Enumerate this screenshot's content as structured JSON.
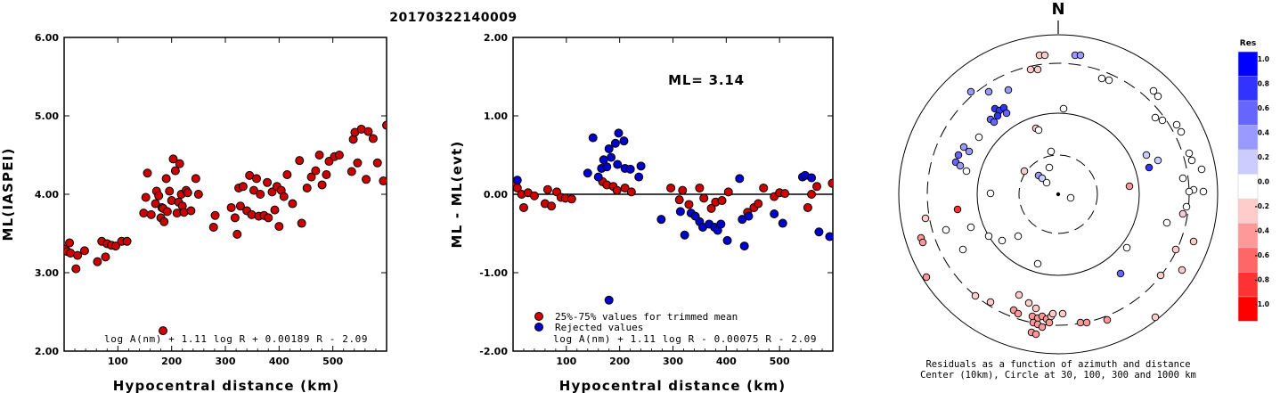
{
  "title": "20170322140009",
  "chart_data": [
    {
      "type": "scatter",
      "xlabel": "Hypocentral distance (km)",
      "ylabel": "ML(IASPEI)",
      "xlim": [
        0,
        600
      ],
      "ylim": [
        2.0,
        6.0
      ],
      "xticks": [
        "100",
        "200",
        "300",
        "400",
        "500"
      ],
      "yticks": [
        "2.00",
        "3.00",
        "4.00",
        "5.00",
        "6.00"
      ],
      "formula": "log A(nm) + 1.11 log R + 0.00189 R - 2.09",
      "points": [
        [
          2,
          3.3
        ],
        [
          6,
          3.27
        ],
        [
          10,
          3.38
        ],
        [
          12,
          3.25
        ],
        [
          22,
          3.05
        ],
        [
          25,
          3.22
        ],
        [
          38,
          3.28
        ],
        [
          62,
          3.14
        ],
        [
          70,
          3.4
        ],
        [
          77,
          3.2
        ],
        [
          80,
          3.37
        ],
        [
          88,
          3.35
        ],
        [
          96,
          3.34
        ],
        [
          107,
          3.4
        ],
        [
          117,
          3.4
        ],
        [
          148,
          3.76
        ],
        [
          152,
          3.96
        ],
        [
          155,
          4.27
        ],
        [
          162,
          3.74
        ],
        [
          170,
          3.88
        ],
        [
          172,
          4.04
        ],
        [
          176,
          3.98
        ],
        [
          180,
          3.7
        ],
        [
          182,
          3.83
        ],
        [
          184,
          3.82
        ],
        [
          186,
          3.65
        ],
        [
          190,
          4.2
        ],
        [
          192,
          3.78
        ],
        [
          196,
          4.04
        ],
        [
          200,
          3.92
        ],
        [
          203,
          4.45
        ],
        [
          207,
          4.3
        ],
        [
          210,
          3.76
        ],
        [
          213,
          3.9
        ],
        [
          215,
          4.39
        ],
        [
          218,
          4.0
        ],
        [
          220,
          3.85
        ],
        [
          223,
          3.77
        ],
        [
          227,
          4.05
        ],
        [
          230,
          4.02
        ],
        [
          236,
          3.79
        ],
        [
          245,
          4.2
        ],
        [
          250,
          4.0
        ],
        [
          278,
          3.58
        ],
        [
          281,
          3.73
        ],
        [
          311,
          3.83
        ],
        [
          318,
          3.7
        ],
        [
          322,
          3.49
        ],
        [
          325,
          4.08
        ],
        [
          328,
          3.85
        ],
        [
          333,
          4.1
        ],
        [
          340,
          3.79
        ],
        [
          345,
          4.24
        ],
        [
          349,
          3.74
        ],
        [
          353,
          4.05
        ],
        [
          358,
          4.2
        ],
        [
          362,
          3.72
        ],
        [
          365,
          4.0
        ],
        [
          372,
          3.73
        ],
        [
          378,
          4.15
        ],
        [
          380,
          3.7
        ],
        [
          387,
          4.03
        ],
        [
          392,
          3.8
        ],
        [
          396,
          4.1
        ],
        [
          400,
          3.59
        ],
        [
          404,
          4.05
        ],
        [
          409,
          3.97
        ],
        [
          415,
          4.25
        ],
        [
          425,
          3.88
        ],
        [
          438,
          4.43
        ],
        [
          442,
          3.63
        ],
        [
          452,
          4.08
        ],
        [
          460,
          4.22
        ],
        [
          468,
          4.3
        ],
        [
          475,
          4.5
        ],
        [
          480,
          4.12
        ],
        [
          488,
          4.25
        ],
        [
          493,
          4.42
        ],
        [
          503,
          4.48
        ],
        [
          512,
          4.5
        ],
        [
          535,
          4.29
        ],
        [
          538,
          4.7
        ],
        [
          541,
          4.79
        ],
        [
          546,
          4.4
        ],
        [
          553,
          4.83
        ],
        [
          562,
          4.19
        ],
        [
          566,
          4.8
        ],
        [
          575,
          4.71
        ],
        [
          583,
          4.4
        ],
        [
          594,
          4.17
        ],
        [
          600,
          4.88
        ],
        [
          184,
          2.26
        ]
      ]
    },
    {
      "type": "scatter",
      "xlabel": "Hypocentral distance (km)",
      "ylabel": "ML - ML(evt)",
      "xlim": [
        0,
        600
      ],
      "ylim": [
        -2.0,
        2.0
      ],
      "xticks": [
        "100",
        "200",
        "300",
        "400",
        "500"
      ],
      "yticks": [
        "-2.00",
        "-1.00",
        "0.00",
        "1.00",
        "2.00"
      ],
      "annotation": "ML= 3.14",
      "formula": "log A(nm) + 1.11 log R - 0.00075 R - 2.09",
      "series": [
        {
          "name": "25%-75% values for trimmed mean",
          "color": "#cc0000",
          "points": [
            [
              5,
              0.14
            ],
            [
              8,
              0.08
            ],
            [
              16,
              0.0
            ],
            [
              20,
              -0.17
            ],
            [
              28,
              0.02
            ],
            [
              40,
              -0.02
            ],
            [
              60,
              -0.12
            ],
            [
              65,
              0.06
            ],
            [
              72,
              -0.15
            ],
            [
              82,
              0.03
            ],
            [
              90,
              -0.04
            ],
            [
              98,
              -0.05
            ],
            [
              110,
              -0.06
            ],
            [
              168,
              0.16
            ],
            [
              176,
              0.12
            ],
            [
              188,
              0.1
            ],
            [
              195,
              0.05
            ],
            [
              210,
              0.08
            ],
            [
              222,
              0.03
            ],
            [
              296,
              0.08
            ],
            [
              312,
              -0.07
            ],
            [
              318,
              0.05
            ],
            [
              330,
              -0.13
            ],
            [
              350,
              0.08
            ],
            [
              358,
              -0.05
            ],
            [
              372,
              -0.18
            ],
            [
              380,
              -0.1
            ],
            [
              392,
              -0.08
            ],
            [
              404,
              0.03
            ],
            [
              440,
              -0.23
            ],
            [
              452,
              -0.17
            ],
            [
              460,
              -0.12
            ],
            [
              470,
              0.08
            ],
            [
              490,
              -0.03
            ],
            [
              500,
              0.02
            ],
            [
              510,
              0.01
            ],
            [
              553,
              -0.17
            ],
            [
              560,
              0.0
            ],
            [
              570,
              0.1
            ],
            [
              599,
              0.14
            ]
          ]
        },
        {
          "name": "Rejected values",
          "color": "#0000cc",
          "points": [
            [
              8,
              0.18
            ],
            [
              140,
              0.27
            ],
            [
              150,
              0.72
            ],
            [
              160,
              0.22
            ],
            [
              166,
              0.33
            ],
            [
              170,
              0.44
            ],
            [
              176,
              0.35
            ],
            [
              180,
              0.58
            ],
            [
              184,
              0.47
            ],
            [
              192,
              0.65
            ],
            [
              196,
              0.38
            ],
            [
              198,
              0.78
            ],
            [
              208,
              0.68
            ],
            [
              210,
              0.33
            ],
            [
              220,
              0.32
            ],
            [
              236,
              0.22
            ],
            [
              240,
              0.36
            ],
            [
              278,
              -0.32
            ],
            [
              314,
              -0.22
            ],
            [
              322,
              -0.52
            ],
            [
              334,
              -0.24
            ],
            [
              342,
              -0.28
            ],
            [
              350,
              -0.35
            ],
            [
              356,
              -0.42
            ],
            [
              368,
              -0.38
            ],
            [
              378,
              -0.42
            ],
            [
              384,
              -0.46
            ],
            [
              390,
              -0.38
            ],
            [
              402,
              -0.59
            ],
            [
              425,
              0.2
            ],
            [
              430,
              -0.32
            ],
            [
              434,
              -0.66
            ],
            [
              442,
              -0.28
            ],
            [
              490,
              -0.25
            ],
            [
              506,
              -0.37
            ],
            [
              543,
              0.22
            ],
            [
              548,
              0.24
            ],
            [
              560,
              0.21
            ],
            [
              574,
              -0.48
            ],
            [
              594,
              -0.54
            ],
            [
              180,
              -1.35
            ]
          ]
        }
      ]
    },
    {
      "type": "polar-scatter",
      "north_label": "N",
      "caption1": "Residuals as a function of azimuth and distance",
      "caption2": "Center (10km), Circle at 30, 100, 300 and 1000 km",
      "colorbar": {
        "title": "Res",
        "labels": [
          "1.0",
          "0.8",
          "0.6",
          "0.4",
          "0.2",
          "0.0",
          "-0.2",
          "-0.4",
          "-0.6",
          "-0.8",
          "-1.0"
        ],
        "colors": [
          "#0000ff",
          "#3333ff",
          "#6666ff",
          "#9999ff",
          "#ccccff",
          "#ffffff",
          "#ffcccc",
          "#ff9999",
          "#ff6666",
          "#ff3333",
          "#ff0000"
        ]
      },
      "points": [
        [
          1167,
          62,
          -0.25
        ],
        [
          1173,
          62,
          -0.25
        ],
        [
          1207,
          62,
          0.3
        ],
        [
          1213,
          62,
          0.3
        ],
        [
          1157,
          78,
          -0.1
        ],
        [
          1165,
          78,
          -0.1
        ],
        [
          1237,
          88,
          0.0
        ],
        [
          1245,
          90,
          0.0
        ],
        [
          1090,
          103,
          0.5
        ],
        [
          1110,
          103,
          0.5
        ],
        [
          1132,
          101,
          0.3
        ],
        [
          1295,
          102,
          0.0
        ],
        [
          1300,
          108,
          0.0
        ],
        [
          1117,
          122,
          0.8
        ],
        [
          1122,
          124,
          0.8
        ],
        [
          1127,
          121,
          0.85
        ],
        [
          1130,
          127,
          0.7
        ],
        [
          1120,
          130,
          0.75
        ],
        [
          1112,
          134,
          0.6
        ],
        [
          1116,
          137,
          0.55
        ],
        [
          1194,
          122,
          0.0
        ],
        [
          1297,
          132,
          0.0
        ],
        [
          1305,
          135,
          0.0
        ],
        [
          1321,
          140,
          0.1
        ],
        [
          1326,
          148,
          0.0
        ],
        [
          1099,
          154,
          0.0
        ],
        [
          1163,
          144,
          -0.15
        ],
        [
          1166,
          146,
          0.0
        ],
        [
          1082,
          165,
          0.5
        ],
        [
          1076,
          174,
          0.6
        ],
        [
          1088,
          170,
          0.5
        ],
        [
          1073,
          182,
          0.6
        ],
        [
          1078,
          186,
          0.5
        ],
        [
          1180,
          170,
          0.0
        ],
        [
          1287,
          174,
          0.2
        ],
        [
          1300,
          180,
          0.25
        ],
        [
          1335,
          172,
          0.0
        ],
        [
          1338,
          180,
          0.0
        ],
        [
          1349,
          190,
          0.0
        ],
        [
          1290,
          188,
          0.75
        ],
        [
          1178,
          188,
          0.0
        ],
        [
          1085,
          192,
          0.0
        ],
        [
          1150,
          192,
          -0.2
        ],
        [
          1166,
          197,
          0.3
        ],
        [
          1170,
          200,
          0.25
        ],
        [
          1175,
          205,
          0.0
        ],
        [
          1268,
          209,
          -0.3
        ],
        [
          1328,
          200,
          0.0
        ],
        [
          1340,
          213,
          0.0
        ],
        [
          1351,
          215,
          0.0
        ],
        [
          1335,
          215,
          0.0
        ],
        [
          1075,
          235,
          -0.9
        ],
        [
          1112,
          217,
          0.0
        ],
        [
          1202,
          222,
          0.0
        ],
        [
          1332,
          232,
          0.0
        ],
        [
          1328,
          240,
          -0.2
        ],
        [
          1034,
          267,
          -0.4
        ],
        [
          1039,
          245,
          -0.25
        ],
        [
          1036,
          272,
          -0.3
        ],
        [
          1062,
          258,
          0.0
        ],
        [
          1090,
          255,
          0.0
        ],
        [
          1110,
          265,
          0.0
        ],
        [
          1125,
          270,
          0.0
        ],
        [
          1143,
          265,
          0.0
        ],
        [
          1165,
          296,
          0.0
        ],
        [
          1081,
          280,
          0.0
        ],
        [
          1310,
          250,
          0.0
        ],
        [
          1320,
          280,
          -0.1
        ],
        [
          1340,
          271,
          -0.15
        ],
        [
          1265,
          278,
          0.0
        ],
        [
          1258,
          307,
          0.55
        ],
        [
          1303,
          309,
          -0.1
        ],
        [
          1327,
          303,
          -0.2
        ],
        [
          1040,
          311,
          -0.3
        ],
        [
          1095,
          332,
          -0.2
        ],
        [
          1112,
          339,
          -0.2
        ],
        [
          1144,
          331,
          -0.2
        ],
        [
          1155,
          340,
          -0.2
        ],
        [
          1163,
          346,
          -0.25
        ],
        [
          1138,
          348,
          -0.3
        ],
        [
          1143,
          352,
          -0.3
        ],
        [
          1159,
          355,
          -0.4
        ],
        [
          1165,
          357,
          -0.4
        ],
        [
          1170,
          355,
          -0.3
        ],
        [
          1175,
          358,
          -0.3
        ],
        [
          1180,
          355,
          -0.15
        ],
        [
          1160,
          362,
          -0.45
        ],
        [
          1165,
          364,
          -0.45
        ],
        [
          1170,
          367,
          -0.4
        ],
        [
          1178,
          362,
          -0.35
        ],
        [
          1182,
          352,
          -0.2
        ],
        [
          1193,
          352,
          -0.15
        ],
        [
          1158,
          373,
          -0.45
        ],
        [
          1163,
          375,
          -0.4
        ],
        [
          1213,
          362,
          -0.3
        ],
        [
          1220,
          362,
          -0.3
        ],
        [
          1243,
          359,
          -0.3
        ],
        [
          1297,
          356,
          -0.1
        ]
      ]
    }
  ]
}
